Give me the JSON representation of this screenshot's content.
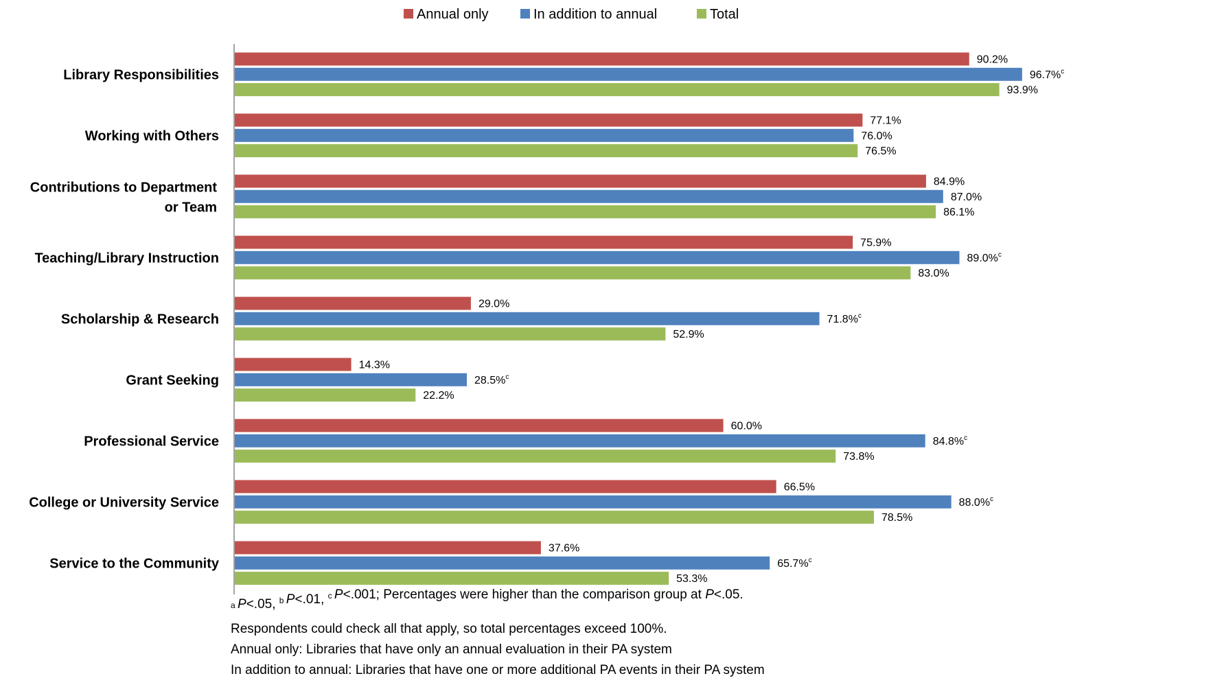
{
  "chart_data": {
    "type": "bar",
    "orientation": "horizontal",
    "legend_position": "top",
    "grid": false,
    "xlim": [
      0,
      100
    ],
    "categories": [
      "Library Responsibilities",
      "Working with Others",
      "Contributions to Department or Team",
      "Teaching/Library Instruction",
      "Scholarship & Research",
      "Grant Seeking",
      "Professional Service",
      "College or University Service",
      "Service to the Community"
    ],
    "category_lines": [
      [
        "Library Responsibilities"
      ],
      [
        "Working with Others"
      ],
      [
        "Contributions to Department",
        "or Team"
      ],
      [
        "Teaching/Library Instruction"
      ],
      [
        "Scholarship & Research"
      ],
      [
        "Grant Seeking"
      ],
      [
        "Professional Service"
      ],
      [
        "College or University Service"
      ],
      [
        "Service to the Community"
      ]
    ],
    "series": [
      {
        "name": "Annual only",
        "color": "#c0504d",
        "values": [
          90.2,
          77.1,
          84.9,
          75.9,
          29.0,
          14.3,
          60.0,
          66.5,
          37.6
        ],
        "superscripts": [
          "",
          "",
          "",
          "",
          "",
          "",
          "",
          "",
          ""
        ]
      },
      {
        "name": "In addition to annual",
        "color": "#4f81bd",
        "values": [
          96.7,
          76.0,
          87.0,
          89.0,
          71.8,
          28.5,
          84.8,
          88.0,
          65.7
        ],
        "superscripts": [
          "c",
          "",
          "",
          "c",
          "c",
          "c",
          "c",
          "c",
          "c"
        ]
      },
      {
        "name": "Total",
        "color": "#9bbb59",
        "values": [
          93.9,
          76.5,
          86.1,
          83.0,
          52.9,
          22.2,
          73.8,
          78.5,
          53.3
        ],
        "superscripts": [
          "",
          "",
          "",
          "",
          "",
          "",
          "",
          "",
          ""
        ]
      }
    ],
    "value_suffix": "%",
    "footnotes": {
      "line1": [
        {
          "sup": "a"
        },
        {
          "it": "P"
        },
        {
          "t": "<.05, "
        },
        {
          "sup": "b"
        },
        {
          "it": "P"
        },
        {
          "t": "<.01, "
        },
        {
          "sup": "c"
        },
        {
          "it": "P"
        },
        {
          "t": "<.001; Percentages were higher than the comparison group at "
        },
        {
          "it": "P"
        },
        {
          "t": "<.05."
        }
      ],
      "line2": "Respondents could check all that apply, so total percentages exceed 100%.",
      "line3": "Annual only: Libraries that have only an annual evaluation in their PA system",
      "line4": "In addition to annual: Libraries that have one or more additional PA events in their PA system"
    }
  }
}
